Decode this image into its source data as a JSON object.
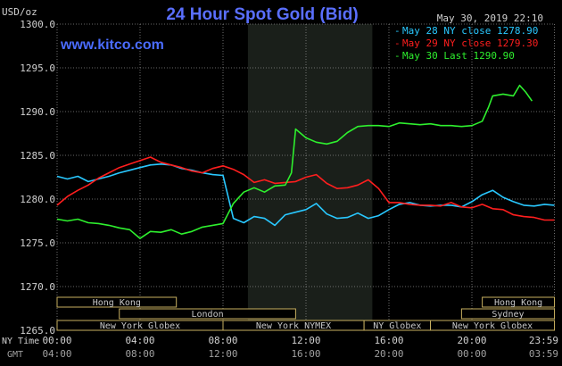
{
  "header": {
    "units": "USD/oz",
    "title": "24 Hour Spot Gold (Bid)",
    "timestamp": "May 30, 2019 22:10",
    "brand": "www.kitco.com"
  },
  "colors": {
    "background": "#000000",
    "title": "#5a6fff",
    "brand": "#4a6cff",
    "grid": "#8a8a8a",
    "shade": "#1a1f1a",
    "session_fill": "#000000",
    "session_border": "#c8b060",
    "session_text": "#c8c8c8",
    "axis_text": "#d0d0d0",
    "axis_text_dim": "#a0a0a0"
  },
  "chart_data": {
    "type": "line",
    "ylabel": "USD/oz",
    "ylim": [
      1265.0,
      1300.0
    ],
    "yticks": [
      "1300.0",
      "1295.0",
      "1290.0",
      "1285.0",
      "1280.0",
      "1275.0",
      "1270.0",
      "1265.0"
    ],
    "xlim": [
      0,
      24
    ],
    "xticks_ny": [
      "00:00",
      "04:00",
      "08:00",
      "12:00",
      "16:00",
      "20:00",
      "23:59"
    ],
    "xticks_gmt": [
      "04:00",
      "08:00",
      "12:00",
      "16:00",
      "20:00",
      "00:00",
      "03:59"
    ],
    "x_row_labels": [
      "NY Time",
      "GMT"
    ],
    "shaded_hours": [
      9.2,
      15.2
    ],
    "series": [
      {
        "name": "May 28 NY close 1278.90",
        "color": "#29c8ff",
        "x": [
          0,
          0.5,
          1,
          1.5,
          2,
          2.5,
          3,
          3.5,
          4,
          4.5,
          5,
          5.5,
          6,
          6.5,
          7,
          7.5,
          8,
          8.5,
          9,
          9.5,
          10,
          10.5,
          11,
          11.5,
          12,
          12.5,
          13,
          13.5,
          14,
          14.5,
          15,
          15.5,
          16,
          16.5,
          17,
          17.5,
          18,
          18.5,
          19,
          19.5,
          20,
          20.5,
          21,
          21.5,
          22,
          22.5,
          23,
          23.5,
          23.98
        ],
        "y": [
          1282.6,
          1282.3,
          1282.6,
          1282.0,
          1282.3,
          1282.6,
          1283.0,
          1283.3,
          1283.6,
          1283.9,
          1284.0,
          1283.9,
          1283.5,
          1283.3,
          1283.0,
          1282.8,
          1282.7,
          1277.8,
          1277.3,
          1278.0,
          1277.8,
          1277.0,
          1278.2,
          1278.5,
          1278.8,
          1279.5,
          1278.3,
          1277.8,
          1277.9,
          1278.4,
          1277.8,
          1278.1,
          1278.8,
          1279.4,
          1279.6,
          1279.3,
          1279.2,
          1279.3,
          1279.3,
          1279.1,
          1279.7,
          1280.5,
          1281.0,
          1280.2,
          1279.7,
          1279.3,
          1279.2,
          1279.4,
          1279.3
        ]
      },
      {
        "name": "May 29 NY close 1279.30",
        "color": "#ff1e1e",
        "x": [
          0,
          0.5,
          1,
          1.5,
          2,
          2.5,
          3,
          3.5,
          4,
          4.5,
          5,
          5.5,
          6,
          6.5,
          7,
          7.5,
          8,
          8.5,
          9,
          9.5,
          10,
          10.5,
          11,
          11.5,
          12,
          12.5,
          13,
          13.5,
          14,
          14.5,
          15,
          15.5,
          16,
          16.5,
          17,
          17.5,
          18,
          18.5,
          19,
          19.5,
          20,
          20.5,
          21,
          21.5,
          22,
          22.5,
          23,
          23.5,
          23.98
        ],
        "y": [
          1279.3,
          1280.3,
          1281.0,
          1281.6,
          1282.4,
          1283.0,
          1283.6,
          1284.0,
          1284.4,
          1284.8,
          1284.2,
          1283.9,
          1283.6,
          1283.2,
          1283.0,
          1283.5,
          1283.8,
          1283.4,
          1282.8,
          1281.9,
          1282.2,
          1281.8,
          1281.9,
          1282.0,
          1282.5,
          1282.8,
          1281.8,
          1281.2,
          1281.3,
          1281.6,
          1282.2,
          1281.2,
          1279.6,
          1279.6,
          1279.4,
          1279.3,
          1279.3,
          1279.2,
          1279.6,
          1279.1,
          1279.0,
          1279.4,
          1278.9,
          1278.8,
          1278.2,
          1278.0,
          1277.9,
          1277.6,
          1277.6
        ]
      },
      {
        "name": "May 30 Last 1290.90",
        "color": "#2ef02e",
        "x": [
          0,
          0.5,
          1,
          1.5,
          2,
          2.5,
          3,
          3.5,
          4,
          4.5,
          5,
          5.5,
          6,
          6.5,
          7,
          7.5,
          8,
          8.5,
          9,
          9.5,
          10,
          10.5,
          11,
          11.3,
          11.5,
          12,
          12.5,
          13,
          13.5,
          14,
          14.5,
          15,
          15.5,
          16,
          16.5,
          17,
          17.5,
          18,
          18.5,
          19,
          19.5,
          20,
          20.5,
          20.8,
          21,
          21.5,
          22,
          22.3,
          22.6,
          22.9
        ],
        "y": [
          1277.7,
          1277.5,
          1277.7,
          1277.3,
          1277.2,
          1277.0,
          1276.7,
          1276.5,
          1275.5,
          1276.3,
          1276.2,
          1276.5,
          1276.0,
          1276.3,
          1276.8,
          1277.0,
          1277.2,
          1279.5,
          1280.8,
          1281.3,
          1280.8,
          1281.5,
          1281.6,
          1283.0,
          1288.0,
          1287.0,
          1286.5,
          1286.3,
          1286.6,
          1287.6,
          1288.3,
          1288.4,
          1288.4,
          1288.3,
          1288.7,
          1288.6,
          1288.5,
          1288.6,
          1288.4,
          1288.4,
          1288.3,
          1288.4,
          1288.9,
          1290.5,
          1291.8,
          1292.0,
          1291.8,
          1293.0,
          1292.2,
          1291.2
        ]
      }
    ],
    "sessions": [
      {
        "label": "Hong Kong",
        "row": 0,
        "start": 0,
        "end": 5.75
      },
      {
        "label": "Hong Kong",
        "row": 0,
        "start": 20.5,
        "end": 23.98
      },
      {
        "label": "London",
        "row": 1,
        "start": 3.0,
        "end": 11.5
      },
      {
        "label": "Sydney",
        "row": 1,
        "start": 19.5,
        "end": 23.98
      },
      {
        "label": "New York Globex",
        "row": 2,
        "start": 0,
        "end": 8.0
      },
      {
        "label": "New York NYMEX",
        "row": 2,
        "start": 8.0,
        "end": 14.8
      },
      {
        "label": "NY Globex",
        "row": 2,
        "start": 14.8,
        "end": 18.0
      },
      {
        "label": "New York Globex",
        "row": 2,
        "start": 18.0,
        "end": 23.98
      }
    ],
    "grid": true,
    "legend_position": "top-right"
  }
}
